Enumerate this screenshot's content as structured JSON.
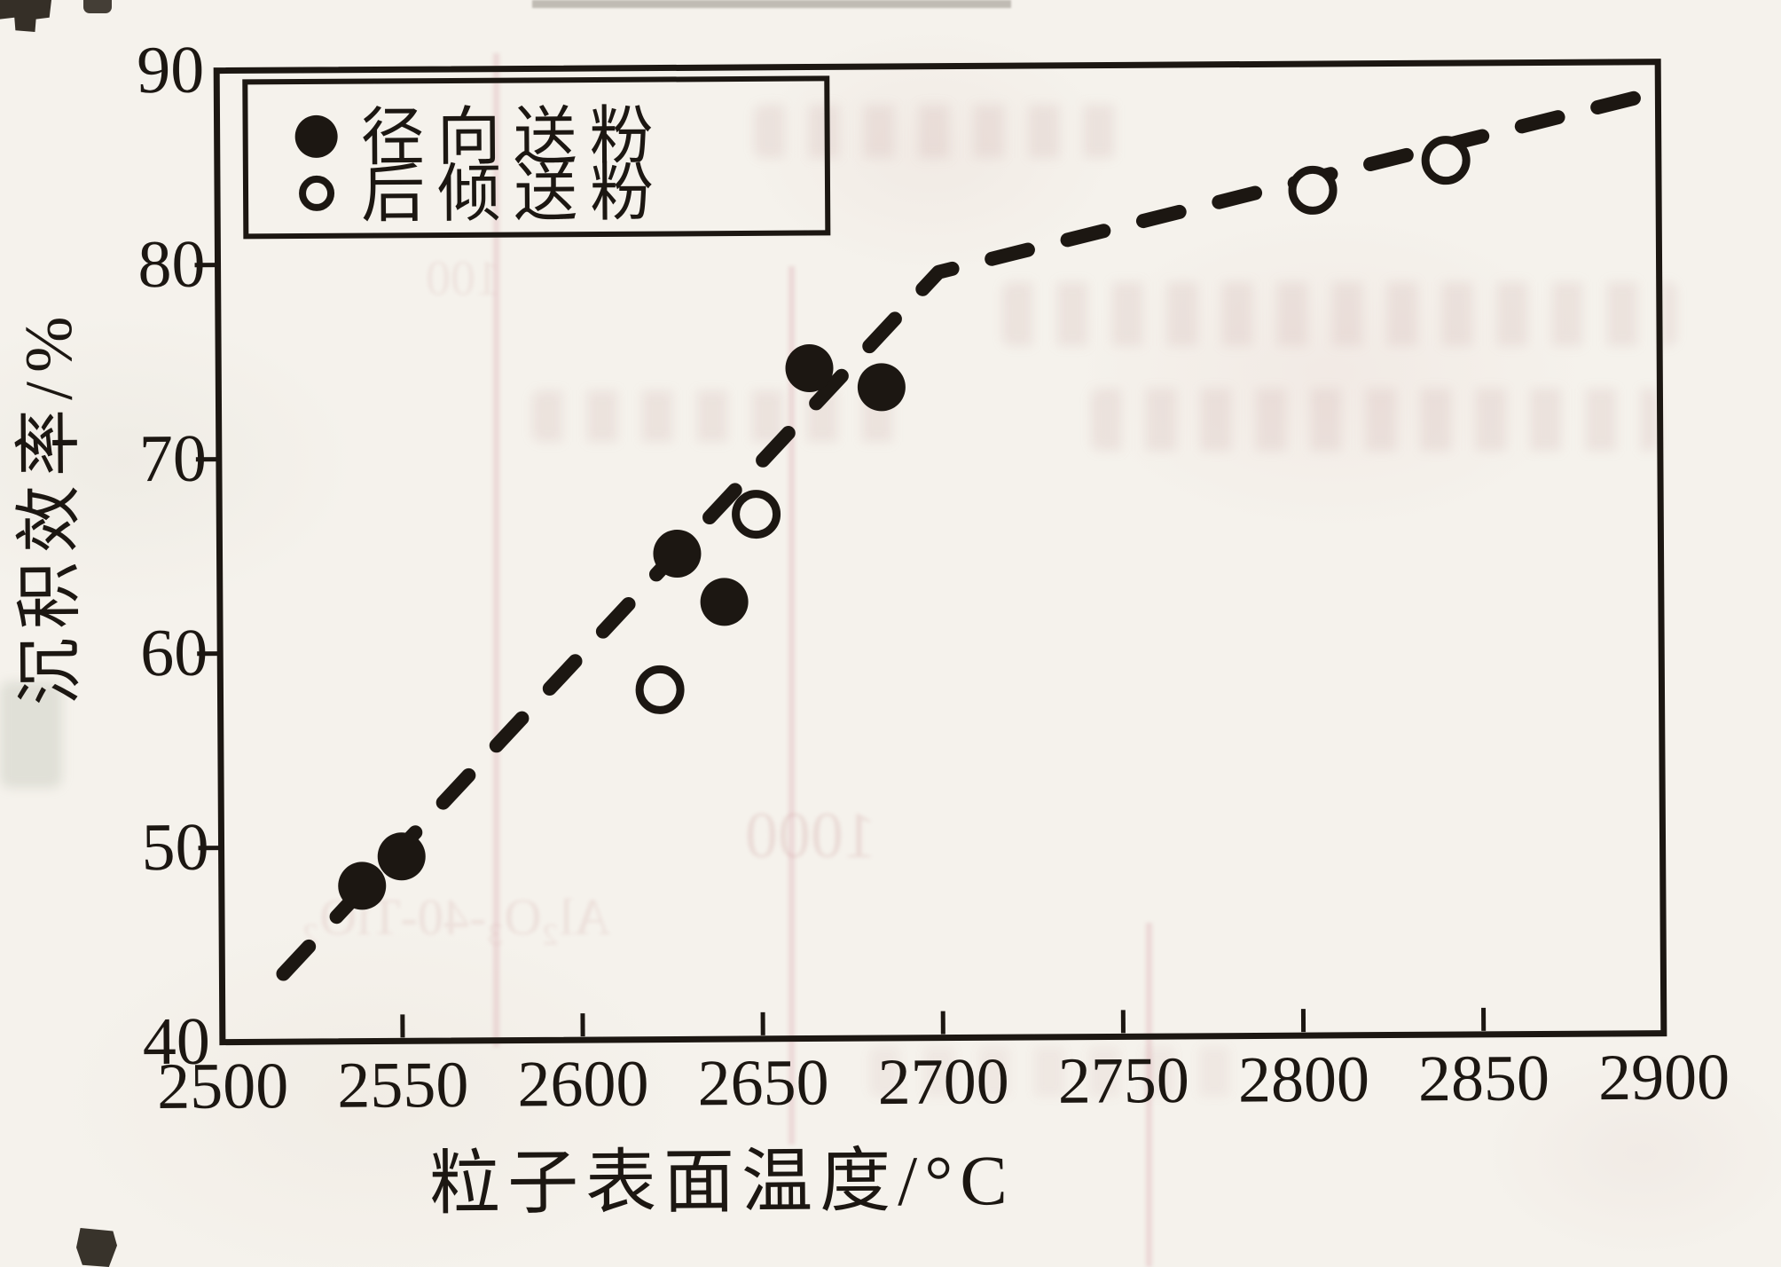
{
  "figure": {
    "paper_color": "#f5f2ec",
    "ink_color": "#1c1712"
  },
  "chart_data": {
    "type": "scatter",
    "title": "",
    "xlabel": "粒子表面温度/°C",
    "ylabel": "沉积效率/%",
    "xlim": [
      2500,
      2900
    ],
    "ylim": [
      40,
      90
    ],
    "x_ticks": [
      2500,
      2550,
      2600,
      2650,
      2700,
      2750,
      2800,
      2850,
      2900
    ],
    "y_ticks": [
      40,
      50,
      60,
      70,
      80,
      90
    ],
    "grid": false,
    "legend_position": "top-left",
    "series": [
      {
        "name": "径向送粉",
        "marker": "filled-circle",
        "points": [
          [
            2539,
            48
          ],
          [
            2550,
            49.5
          ],
          [
            2627,
            65
          ],
          [
            2640,
            62.5
          ],
          [
            2664,
            74.5
          ],
          [
            2684,
            73.5
          ]
        ]
      },
      {
        "name": "后倾送粉",
        "marker": "open-circle",
        "points": [
          [
            2622,
            58
          ],
          [
            2649,
            67
          ],
          [
            2804,
            83.5
          ],
          [
            2841,
            85
          ]
        ]
      }
    ],
    "trend_line": {
      "style": "dashed",
      "points": [
        [
          2517,
          43.5
        ],
        [
          2700,
          79.4
        ],
        [
          2897,
          88.3
        ]
      ]
    }
  },
  "scan_artifacts": {
    "bleed_texts": [
      {
        "text": "1000"
      },
      {
        "text": "Al₂O₃-40-TiO₂"
      },
      {
        "text": "100"
      }
    ]
  }
}
